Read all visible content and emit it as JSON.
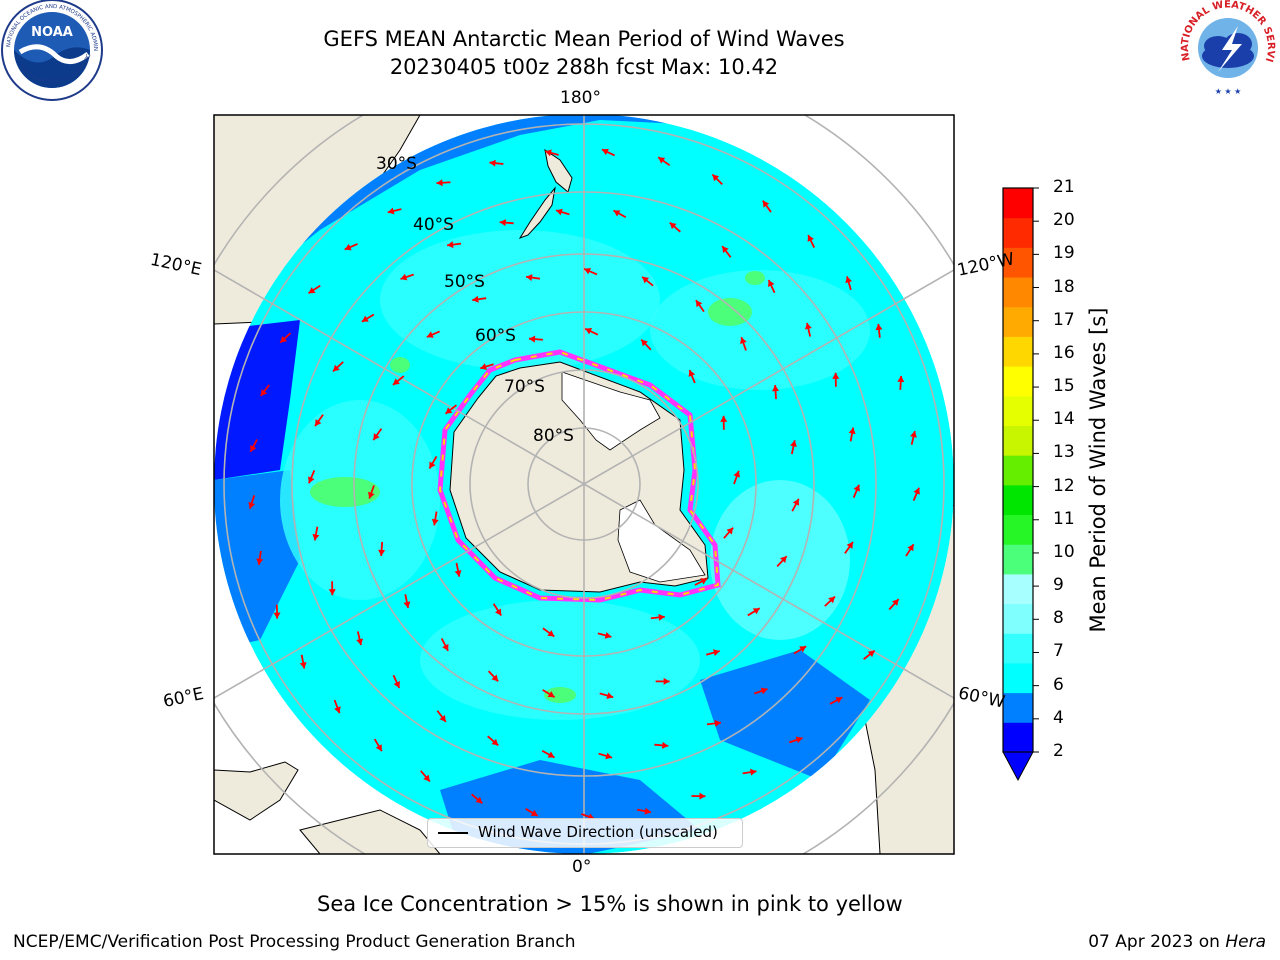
{
  "header": {
    "title_line1": "GEFS MEAN Antarctic Mean Period of Wind Waves",
    "title_line2": "20230405 t00z 288h fcst   Max: 10.42"
  },
  "logos": {
    "noaa_text": "NOAA",
    "noaa_ring_text": "NATIONAL OCEANIC AND ATMOSPHERIC ADMINISTRATION",
    "noaa_bottom_text": "U.S. DEPARTMENT OF COMMERCE",
    "nws_ring_text": "NATIONAL WEATHER SERVICE"
  },
  "map": {
    "longitude_labels": {
      "top": "180°",
      "bottom": "0°",
      "upper_left": "120°E",
      "upper_right": "120°W",
      "lower_left": "60°E",
      "lower_right": "60°W"
    },
    "latitude_labels": [
      "30°S",
      "40°S",
      "50°S",
      "60°S",
      "70°S",
      "80°S"
    ],
    "legend_label": "Wind Wave Direction (unscaled)"
  },
  "colorbar": {
    "label": "Mean Period of Wind Waves [s]",
    "ticks": [
      "2",
      "4",
      "6",
      "7",
      "8",
      "9",
      "10",
      "11",
      "12",
      "13",
      "14",
      "15",
      "16",
      "17",
      "18",
      "19",
      "20",
      "21"
    ],
    "colors": [
      "#0000ff",
      "#0080ff",
      "#00ffff",
      "#33ffff",
      "#80ffff",
      "#a8ffff",
      "#4cff7a",
      "#26f526",
      "#00e600",
      "#66ee00",
      "#c8f500",
      "#e6ff00",
      "#ffff00",
      "#ffd700",
      "#ffaa00",
      "#ff8800",
      "#ff5500",
      "#ff2a00",
      "#ff0000"
    ]
  },
  "note": "Sea Ice Concentration > 15% is shown in pink to yellow",
  "footer": {
    "left": "NCEP/EMC/Verification Post Processing Product Generation Branch",
    "date": "07 Apr 2023 on ",
    "host": "Hera"
  }
}
